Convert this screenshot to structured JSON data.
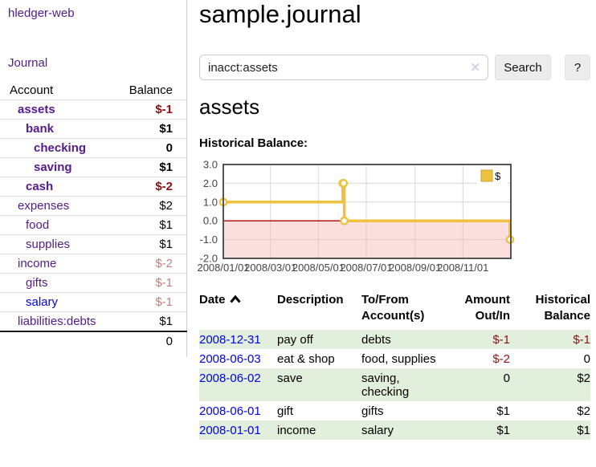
{
  "sidebar": {
    "brand": "hledger-web",
    "nav": {
      "journal": "Journal"
    },
    "accounts": {
      "header": {
        "account": "Account",
        "balance": "Balance"
      },
      "rows": [
        {
          "name": "assets",
          "balance": "$-1",
          "depth": 1,
          "bold": true,
          "neg": "strong"
        },
        {
          "name": "bank",
          "balance": "$1",
          "depth": 2,
          "bold": true,
          "neg": "none"
        },
        {
          "name": "checking",
          "balance": "0",
          "depth": 3,
          "bold": true,
          "neg": "none"
        },
        {
          "name": "saving",
          "balance": "$1",
          "depth": 3,
          "bold": true,
          "neg": "none"
        },
        {
          "name": "cash",
          "balance": "$-2",
          "depth": 2,
          "bold": true,
          "neg": "strong"
        },
        {
          "name": "expenses",
          "balance": "$2",
          "depth": 1,
          "bold": false,
          "neg": "none"
        },
        {
          "name": "food",
          "balance": "$1",
          "depth": 2,
          "bold": false,
          "neg": "none"
        },
        {
          "name": "supplies",
          "balance": "$1",
          "depth": 2,
          "bold": false,
          "neg": "none"
        },
        {
          "name": "income",
          "balance": "$-2",
          "depth": 1,
          "bold": false,
          "neg": "weak"
        },
        {
          "name": "gifts",
          "balance": "$-1",
          "depth": 2,
          "bold": false,
          "neg": "weak"
        },
        {
          "name": "salary",
          "balance": "$-1",
          "depth": 2,
          "bold": false,
          "neg": "weak",
          "unvisited": true
        },
        {
          "name": "liabilities:debts",
          "balance": "$1",
          "depth": 1,
          "bold": false,
          "neg": "none"
        }
      ],
      "total": "0"
    }
  },
  "main": {
    "title": "sample.journal",
    "search": {
      "value": "inacct:assets",
      "clear_icon": "✕",
      "search_button": "Search",
      "help_button": "?"
    },
    "account_heading": "assets",
    "chart_heading": "Historical Balance:"
  },
  "chart_data": {
    "type": "line",
    "step": true,
    "title": "Historical Balance",
    "series": [
      {
        "name": "$",
        "color": "#edc240",
        "points": [
          [
            "2008-01-01",
            1
          ],
          [
            "2008-06-01",
            2
          ],
          [
            "2008-06-02",
            2
          ],
          [
            "2008-06-03",
            0
          ],
          [
            "2008-12-31",
            -1
          ]
        ]
      }
    ],
    "x_range": [
      "2008-01-01",
      "2009-01-01"
    ],
    "ylim": [
      -2,
      3
    ],
    "y_ticks": [
      {
        "v": 3,
        "label": "3.0"
      },
      {
        "v": 2,
        "label": "2.0"
      },
      {
        "v": 1,
        "label": "1.0"
      },
      {
        "v": 0,
        "label": "0.0"
      },
      {
        "v": -1,
        "label": "-1.0"
      },
      {
        "v": -2,
        "label": "-2.0"
      }
    ],
    "x_ticks": [
      {
        "date": "2008-01-01",
        "label": "2008/01/01"
      },
      {
        "date": "2008-03-01",
        "label": "2008/03/01"
      },
      {
        "date": "2008-05-01",
        "label": "2008/05/01"
      },
      {
        "date": "2008-07-01",
        "label": "2008/07/01"
      },
      {
        "date": "2008-09-01",
        "label": "2008/09/01"
      },
      {
        "date": "2008-11-01",
        "label": "2008/11/01"
      }
    ],
    "grid": true,
    "legend": {
      "label": "$",
      "position": "top-right"
    },
    "negative_region": {
      "below": 0,
      "color": "#f6b8b8"
    },
    "zero_line_color": "#aa0000",
    "border_color": "#545454"
  },
  "register": {
    "headers": [
      {
        "lines": [
          "Date"
        ],
        "align": "left",
        "sortable": true
      },
      {
        "lines": [
          "Description"
        ],
        "align": "left",
        "sortable": false
      },
      {
        "lines": [
          "To/From",
          "Account(s)"
        ],
        "align": "left",
        "sortable": false
      },
      {
        "lines": [
          "Amount",
          "Out/In"
        ],
        "align": "right",
        "sortable": false
      },
      {
        "lines": [
          "Historical",
          "Balance"
        ],
        "align": "right",
        "sortable": false
      }
    ],
    "rows": [
      {
        "date": "2008-12-31",
        "description": "pay off",
        "accounts": "debts",
        "amount": "$-1",
        "balance": "$-1"
      },
      {
        "date": "2008-06-03",
        "description": "eat & shop",
        "accounts": "food, supplies",
        "amount": "$-2",
        "balance": "0"
      },
      {
        "date": "2008-06-02",
        "description": "save",
        "accounts": "saving, checking",
        "amount": "0",
        "balance": "$2"
      },
      {
        "date": "2008-06-01",
        "description": "gift",
        "accounts": "gifts",
        "amount": "$1",
        "balance": "$2"
      },
      {
        "date": "2008-01-01",
        "description": "income",
        "accounts": "salary",
        "amount": "$1",
        "balance": "$1"
      }
    ]
  }
}
